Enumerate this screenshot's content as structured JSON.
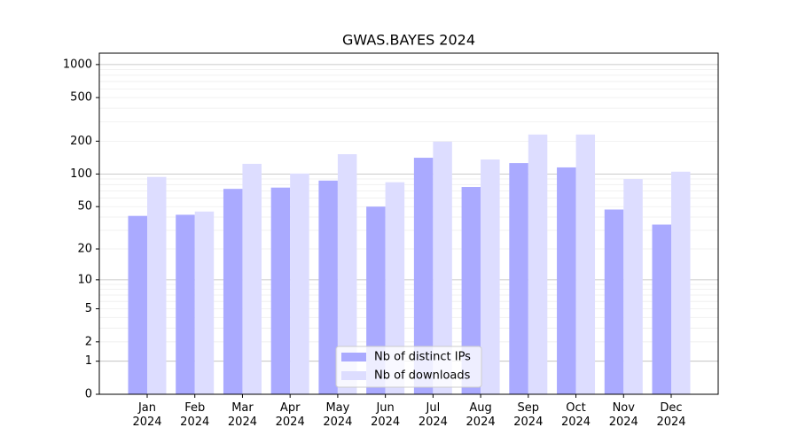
{
  "chart_data": {
    "type": "bar",
    "title": "GWAS.BAYES 2024",
    "categories": [
      "Jan\n2024",
      "Feb\n2024",
      "Mar\n2024",
      "Apr\n2024",
      "May\n2024",
      "Jun\n2024",
      "Jul\n2024",
      "Aug\n2024",
      "Sep\n2024",
      "Oct\n2024",
      "Nov\n2024",
      "Dec\n2024"
    ],
    "series": [
      {
        "name": "Nb of distinct IPs",
        "color": "#aaaaff",
        "values": [
          41,
          42,
          73,
          75,
          87,
          50,
          141,
          76,
          126,
          115,
          47,
          34
        ]
      },
      {
        "name": "Nb of downloads",
        "color": "#ddddff",
        "values": [
          94,
          45,
          124,
          101,
          152,
          84,
          198,
          136,
          230,
          230,
          90,
          105
        ]
      }
    ],
    "y_scale": "log1p",
    "ylim": [
      0,
      1270
    ],
    "yticks": [
      0,
      1,
      2,
      5,
      10,
      20,
      50,
      100,
      200,
      500,
      1000
    ],
    "grid_lines": [
      1,
      10,
      100,
      1000
    ],
    "minor_grid_lines": [
      2,
      3,
      4,
      5,
      6,
      7,
      8,
      9,
      20,
      30,
      40,
      50,
      60,
      70,
      80,
      90,
      200,
      300,
      400,
      500,
      600,
      700,
      800,
      900
    ],
    "legend": "lower center"
  }
}
